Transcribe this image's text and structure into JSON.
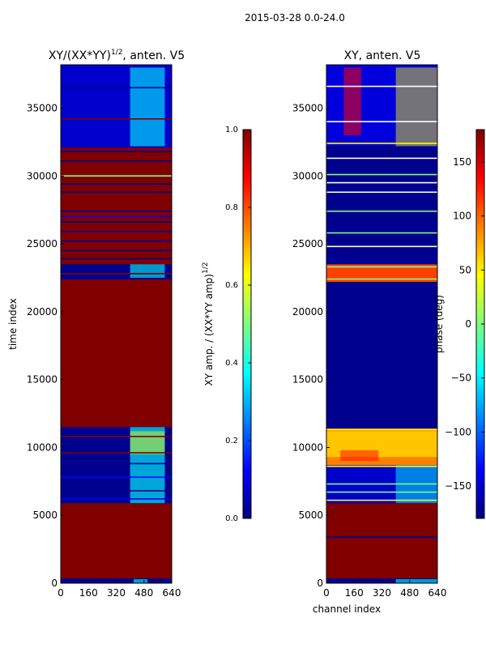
{
  "figure": {
    "suptitle": "2015-03-28 0.0-24.0"
  },
  "colors": {
    "dark_red": "#800000",
    "dark_blue": "#00008f",
    "blue": "#0000ff",
    "cyan": "#00ffff",
    "yellow": "#ffff00",
    "orange": "#ff8000",
    "red": "#ff0000",
    "green": "#80ff80",
    "white": "#ffffff"
  },
  "chart_data": [
    {
      "type": "heatmap",
      "title_main": "XY/(XX*YY)",
      "title_exp": "1/2",
      "title_suffix": ", anten. V5",
      "xlabel": "",
      "ylabel": "time index",
      "xlim": [
        0,
        640
      ],
      "ylim": [
        0,
        38200
      ],
      "xticks": [
        0,
        160,
        320,
        480,
        640
      ],
      "yticks": [
        0,
        5000,
        10000,
        15000,
        20000,
        25000,
        30000,
        35000
      ],
      "colorbar": {
        "label_main": "XY amp. / (XX*YY amp)",
        "label_exp": "1/2",
        "range": [
          0.0,
          1.0
        ],
        "ticks": [
          "0.0",
          "0.2",
          "0.4",
          "0.6",
          "0.8",
          "1.0"
        ]
      },
      "bands": [
        {
          "y0": 0,
          "y1": 350,
          "c": "#00008f"
        },
        {
          "y0": 350,
          "y1": 5900,
          "c": "#800000"
        },
        {
          "y0": 5900,
          "y1": 11500,
          "c": "#00008f"
        },
        {
          "y0": 11500,
          "y1": 22400,
          "c": "#800000"
        },
        {
          "y0": 22400,
          "y1": 23500,
          "c": "#00008f"
        },
        {
          "y0": 23500,
          "y1": 32100,
          "c": "#800000"
        },
        {
          "y0": 32100,
          "y1": 38200,
          "c": "#0000cc"
        }
      ],
      "lines": [
        {
          "y": 6200,
          "c": "#0000ff"
        },
        {
          "y": 6800,
          "c": "#00008f"
        },
        {
          "y": 7800,
          "c": "#0000ff"
        },
        {
          "y": 8800,
          "c": "#00008f"
        },
        {
          "y": 9600,
          "c": "#800000"
        },
        {
          "y": 10800,
          "c": "#800000"
        },
        {
          "y": 22800,
          "c": "#800000"
        },
        {
          "y": 23900,
          "c": "#00008f"
        },
        {
          "y": 24500,
          "c": "#00008f"
        },
        {
          "y": 25200,
          "c": "#00008f"
        },
        {
          "y": 25900,
          "c": "#00008f"
        },
        {
          "y": 26600,
          "c": "#00008f"
        },
        {
          "y": 27000,
          "c": "#0000ff"
        },
        {
          "y": 27400,
          "c": "#00008f"
        },
        {
          "y": 28800,
          "c": "#00008f"
        },
        {
          "y": 29400,
          "c": "#00008f"
        },
        {
          "y": 30000,
          "c": "#80ff80"
        },
        {
          "y": 31100,
          "c": "#00008f"
        },
        {
          "y": 31800,
          "c": "#00008f"
        },
        {
          "y": 34200,
          "c": "#800000"
        },
        {
          "y": 36500,
          "c": "#00008f"
        }
      ],
      "hot": [
        {
          "x0": 400,
          "x1": 600,
          "y0": 5900,
          "y1": 11500,
          "c": "#00ffff",
          "o": 0.65
        },
        {
          "x0": 400,
          "x1": 600,
          "y0": 9500,
          "y1": 11200,
          "c": "#ffff00",
          "o": 0.45
        },
        {
          "x0": 400,
          "x1": 600,
          "y0": 22500,
          "y1": 23500,
          "c": "#00ffff",
          "o": 0.6
        },
        {
          "x0": 400,
          "x1": 600,
          "y0": 32200,
          "y1": 38000,
          "c": "#00ffff",
          "o": 0.6
        },
        {
          "x0": 420,
          "x1": 500,
          "y0": 0,
          "y1": 300,
          "c": "#00ffff",
          "o": 0.6
        }
      ]
    },
    {
      "type": "heatmap",
      "title_main": "XY, anten. V5",
      "xlabel": "channel index",
      "ylabel": "",
      "xlim": [
        0,
        640
      ],
      "ylim": [
        0,
        38200
      ],
      "xticks": [
        0,
        160,
        320,
        480,
        640
      ],
      "yticks": [
        0,
        5000,
        10000,
        15000,
        20000,
        25000,
        30000,
        35000
      ],
      "colorbar": {
        "label_main": "phase (deg)",
        "range": [
          -180,
          180
        ],
        "ticks": [
          "150",
          "100",
          "50",
          "0",
          "−50",
          "−100",
          "−150"
        ]
      },
      "bands": [
        {
          "y0": 0,
          "y1": 350,
          "c": "#00008f"
        },
        {
          "y0": 350,
          "y1": 5900,
          "c": "#800000"
        },
        {
          "y0": 5900,
          "y1": 8700,
          "c": "#0000cc"
        },
        {
          "y0": 8700,
          "y1": 11400,
          "c": "#ff8000"
        },
        {
          "y0": 11400,
          "y1": 22200,
          "c": "#00008f"
        },
        {
          "y0": 22200,
          "y1": 23500,
          "c": "#ff4000"
        },
        {
          "y0": 23500,
          "y1": 32200,
          "c": "#00008f"
        },
        {
          "y0": 32200,
          "y1": 38200,
          "c": "#0000dd"
        }
      ],
      "lines": [
        {
          "y": 3400,
          "c": "#00008f"
        },
        {
          "y": 6100,
          "c": "#ffff00"
        },
        {
          "y": 6700,
          "c": "#80ff80"
        },
        {
          "y": 7300,
          "c": "#80ff80"
        },
        {
          "y": 8600,
          "c": "#ffff00"
        },
        {
          "y": 11300,
          "c": "#ffff00"
        },
        {
          "y": 22400,
          "c": "#80ff80"
        },
        {
          "y": 23300,
          "c": "#80ff80"
        },
        {
          "y": 24800,
          "c": "#ffffff"
        },
        {
          "y": 25800,
          "c": "#80ff80"
        },
        {
          "y": 27400,
          "c": "#80ff80"
        },
        {
          "y": 28800,
          "c": "#ffffff"
        },
        {
          "y": 29500,
          "c": "#ffffff"
        },
        {
          "y": 30100,
          "c": "#80ff80"
        },
        {
          "y": 31300,
          "c": "#ffffff"
        },
        {
          "y": 32400,
          "c": "#ffff00"
        },
        {
          "y": 34000,
          "c": "#ffffff"
        },
        {
          "y": 36600,
          "c": "#ffffff"
        }
      ],
      "hot": [
        {
          "x0": 0,
          "x1": 640,
          "y0": 9300,
          "y1": 11200,
          "c": "#ffff00",
          "o": 0.55
        },
        {
          "x0": 80,
          "x1": 300,
          "y0": 9000,
          "y1": 9800,
          "c": "#ff0000",
          "o": 0.5
        },
        {
          "x0": 400,
          "x1": 640,
          "y0": 5900,
          "y1": 8700,
          "c": "#00ffff",
          "o": 0.5
        },
        {
          "x0": 400,
          "x1": 640,
          "y0": 32200,
          "y1": 38000,
          "c": "#ffff00",
          "o": 0.45
        },
        {
          "x0": 100,
          "x1": 200,
          "y0": 33000,
          "y1": 38000,
          "c": "#ff0000",
          "o": 0.55
        },
        {
          "x0": 400,
          "x1": 640,
          "y0": 0,
          "y1": 300,
          "c": "#00ffff",
          "o": 0.6
        }
      ]
    }
  ]
}
